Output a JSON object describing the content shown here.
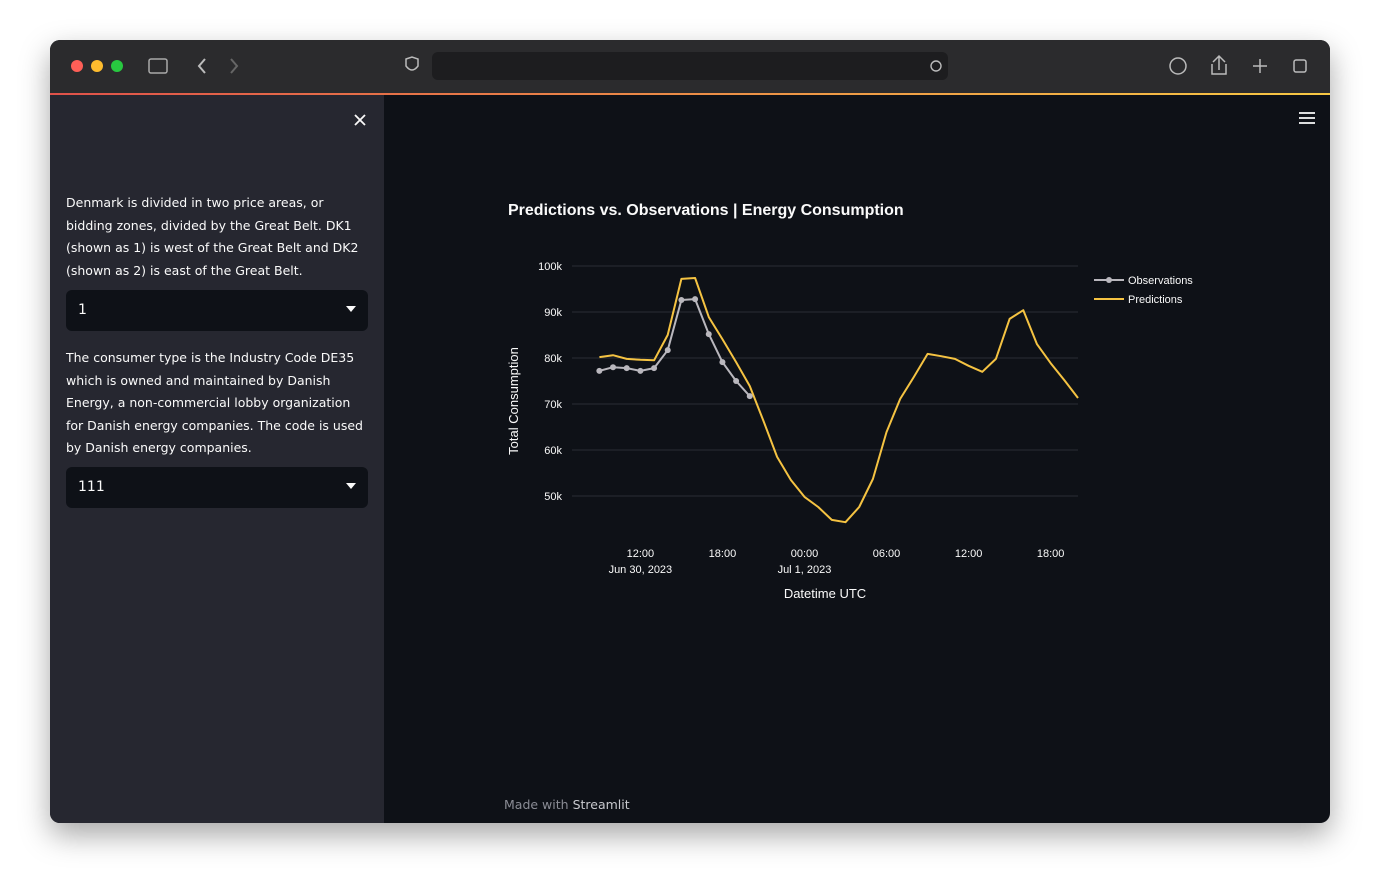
{
  "sidebar": {
    "description_1": "Denmark is divided in two price areas, or bidding zones, divided by the Great Belt. DK1 (shown as 1) is west of the Great Belt and DK2 (shown as 2) is east of the Great Belt.",
    "select_1": "1",
    "description_2": "The consumer type is the Industry Code DE35 which is owned and maintained by Danish Energy, a non-commercial lobby organization for Danish energy companies. The code is used by Danish energy companies.",
    "select_2": "111"
  },
  "footer": {
    "prefix": "Made with",
    "brand": "Streamlit"
  },
  "chart_data": {
    "type": "line",
    "title": "Predictions vs. Observations | Energy Consumption",
    "xlabel": "Datetime UTC",
    "ylabel": "Total Consumption",
    "x": [
      "2023-06-30 09:00",
      "2023-06-30 10:00",
      "2023-06-30 11:00",
      "2023-06-30 12:00",
      "2023-06-30 13:00",
      "2023-06-30 14:00",
      "2023-06-30 15:00",
      "2023-06-30 16:00",
      "2023-06-30 17:00",
      "2023-06-30 18:00",
      "2023-06-30 19:00",
      "2023-06-30 20:00",
      "2023-06-30 21:00",
      "2023-06-30 22:00",
      "2023-06-30 23:00",
      "2023-07-01 00:00",
      "2023-07-01 01:00",
      "2023-07-01 02:00",
      "2023-07-01 03:00",
      "2023-07-01 04:00",
      "2023-07-01 05:00",
      "2023-07-01 06:00",
      "2023-07-01 07:00",
      "2023-07-01 08:00",
      "2023-07-01 09:00",
      "2023-07-01 10:00",
      "2023-07-01 11:00",
      "2023-07-01 12:00",
      "2023-07-01 13:00",
      "2023-07-01 14:00",
      "2023-07-01 15:00",
      "2023-07-01 16:00",
      "2023-07-01 17:00",
      "2023-07-01 18:00",
      "2023-07-01 19:00",
      "2023-07-01 20:00"
    ],
    "series": [
      {
        "name": "Observations",
        "color": "#b9b7bd",
        "markers": true,
        "values": [
          77200,
          78000,
          77800,
          77200,
          77800,
          81700,
          92600,
          92800,
          85200,
          79100,
          75000,
          71700,
          null,
          null,
          null,
          null,
          null,
          null,
          null,
          null,
          null,
          null,
          null,
          null,
          null,
          null,
          null,
          null,
          null,
          null,
          null,
          null,
          null,
          null,
          null,
          null
        ]
      },
      {
        "name": "Predictions",
        "color": "#f5c342",
        "markers": false,
        "values": [
          80200,
          80600,
          79800,
          79600,
          79500,
          85000,
          97200,
          97400,
          88900,
          84100,
          79100,
          73900,
          66300,
          58500,
          53500,
          49800,
          47600,
          44800,
          44300,
          47600,
          53700,
          63900,
          71100,
          75900,
          80900,
          80400,
          79800,
          78300,
          77000,
          79800,
          88500,
          90400,
          83000,
          78900,
          75200,
          71300
        ]
      }
    ],
    "xlim": [
      "2023-06-30 07:00",
      "2023-07-01 20:00"
    ],
    "xticks": [
      {
        "value": "2023-06-30 12:00",
        "label": "12:00",
        "sublabel": "Jun 30, 2023"
      },
      {
        "value": "2023-06-30 18:00",
        "label": "18:00"
      },
      {
        "value": "2023-07-01 00:00",
        "label": "00:00",
        "sublabel": "Jul 1, 2023"
      },
      {
        "value": "2023-07-01 06:00",
        "label": "06:00"
      },
      {
        "value": "2023-07-01 12:00",
        "label": "12:00"
      },
      {
        "value": "2023-07-01 18:00",
        "label": "18:00"
      }
    ],
    "ylim": [
      43000,
      101000
    ],
    "yticks": [
      {
        "value": 50000,
        "label": "50k"
      },
      {
        "value": 60000,
        "label": "60k"
      },
      {
        "value": 70000,
        "label": "70k"
      },
      {
        "value": 80000,
        "label": "80k"
      },
      {
        "value": 90000,
        "label": "90k"
      },
      {
        "value": 100000,
        "label": "100k"
      }
    ],
    "grid": true,
    "legend": "top-right"
  }
}
